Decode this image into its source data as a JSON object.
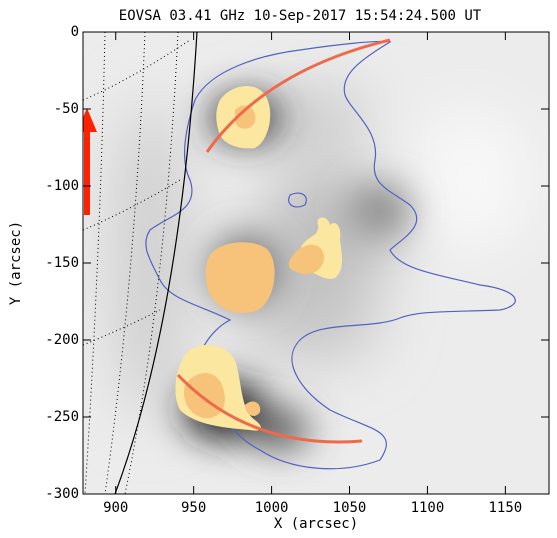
{
  "chart_data": {
    "type": "image",
    "title": "EOVSA 03.41 GHz 10-Sep-2017 15:54:24.500 UT",
    "xlabel": "X (arcsec)",
    "ylabel": "Y (arcsec)",
    "xlim": [
      879,
      1178
    ],
    "ylim": [
      -300,
      0
    ],
    "xticks": [
      900,
      950,
      1000,
      1050,
      1100,
      1150
    ],
    "yticks": [
      -300,
      -250,
      -200,
      -150,
      -100,
      -50,
      0
    ]
  }
}
